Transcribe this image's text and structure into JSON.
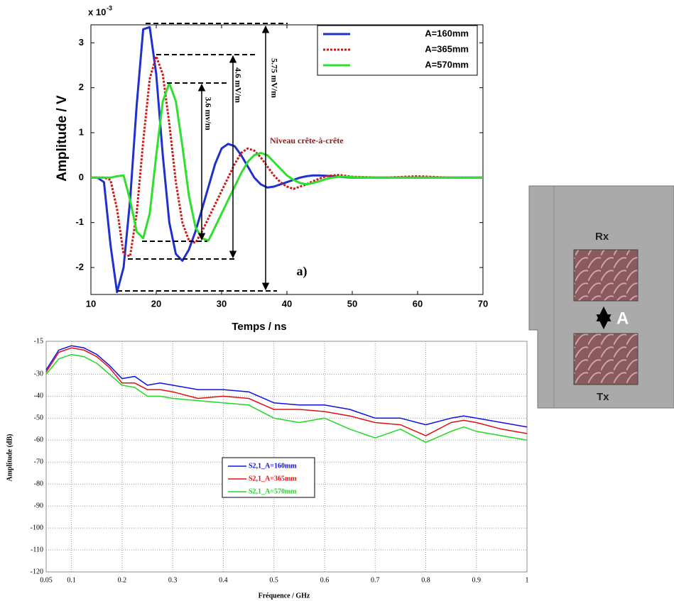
{
  "chart_data": [
    {
      "type": "line",
      "y_label": "Amplitude / V",
      "x_label": "Temps / ns",
      "y_multiplier": {
        "base": "x 10",
        "exponent": "-3"
      },
      "xlim": [
        10,
        70
      ],
      "xticks": [
        10,
        20,
        30,
        40,
        50,
        60,
        70
      ],
      "ylim": [
        -2.6,
        3.4
      ],
      "yticks": [
        -2,
        -1,
        0,
        1,
        2,
        3
      ],
      "grid": false,
      "legend": "upper right",
      "annotations": [
        "5.75 mV/m",
        "4.6 mV/m",
        "3.6 mv/m",
        "Niveau crête-à-crête",
        "a)"
      ],
      "x": [
        10,
        11,
        12,
        13,
        14,
        15,
        16,
        17,
        18,
        19,
        20,
        21,
        22,
        23,
        24,
        25,
        26,
        27,
        28,
        29,
        30,
        31,
        32,
        33,
        34,
        35,
        36,
        37,
        38,
        39,
        40,
        41,
        42,
        43,
        44,
        45,
        46,
        47,
        48,
        49,
        50,
        55,
        60,
        65,
        70
      ],
      "series": [
        {
          "name": "A=160mm",
          "color": "#1f2fd0",
          "dash": "solid",
          "values": [
            0,
            0,
            -0.1,
            -1.5,
            -2.55,
            -2.0,
            -0.5,
            1.6,
            3.3,
            3.35,
            2.3,
            0.5,
            -1.0,
            -1.7,
            -1.85,
            -1.6,
            -1.2,
            -0.7,
            -0.2,
            0.3,
            0.65,
            0.75,
            0.7,
            0.5,
            0.25,
            0.0,
            -0.15,
            -0.22,
            -0.2,
            -0.15,
            -0.1,
            -0.05,
            0,
            0.03,
            0.05,
            0.05,
            0.04,
            0.03,
            0.02,
            0.01,
            0,
            0,
            0,
            0,
            0
          ]
        },
        {
          "name": "A=365mm",
          "color": "#d01818",
          "dash": "dotted",
          "values": [
            0,
            0,
            0,
            -0.05,
            -0.7,
            -1.7,
            -1.75,
            -0.8,
            0.8,
            2.2,
            2.7,
            2.3,
            1.2,
            -0.1,
            -1.0,
            -1.4,
            -1.45,
            -1.2,
            -0.9,
            -0.6,
            -0.3,
            0.0,
            0.3,
            0.55,
            0.65,
            0.6,
            0.45,
            0.25,
            0.05,
            -0.1,
            -0.2,
            -0.25,
            -0.2,
            -0.15,
            -0.08,
            -0.02,
            0.03,
            0.05,
            0.06,
            0.04,
            0.02,
            0,
            0.03,
            0,
            0
          ]
        },
        {
          "name": "A=570mm",
          "color": "#2ee02e",
          "dash": "solid",
          "values": [
            0,
            0,
            0,
            0,
            0.03,
            0.05,
            -0.5,
            -1.2,
            -1.35,
            -0.8,
            0.5,
            1.7,
            2.1,
            1.7,
            0.7,
            -0.4,
            -1.1,
            -1.35,
            -1.4,
            -1.1,
            -0.8,
            -0.5,
            -0.2,
            0.1,
            0.35,
            0.5,
            0.55,
            0.5,
            0.35,
            0.2,
            0.05,
            -0.05,
            -0.12,
            -0.15,
            -0.12,
            -0.08,
            -0.03,
            0,
            0.02,
            0.02,
            0.01,
            0,
            0,
            0,
            0
          ]
        }
      ]
    },
    {
      "type": "line",
      "y_label": "Amplitude (dB)",
      "x_label": "Fréquence / GHz",
      "xlim": [
        0.05,
        1
      ],
      "xticks": [
        0.05,
        0.1,
        0.2,
        0.3,
        0.4,
        0.5,
        0.6,
        0.7,
        0.8,
        0.9,
        1
      ],
      "ylim": [
        -120,
        -15
      ],
      "yticks": [
        -15,
        -30,
        -40,
        -50,
        -60,
        -70,
        -80,
        -90,
        -100,
        -110,
        -120
      ],
      "grid": true,
      "legend": "center left",
      "x": [
        0.05,
        0.075,
        0.1,
        0.125,
        0.15,
        0.175,
        0.2,
        0.225,
        0.25,
        0.275,
        0.3,
        0.35,
        0.4,
        0.45,
        0.5,
        0.55,
        0.6,
        0.65,
        0.7,
        0.75,
        0.8,
        0.85,
        0.875,
        0.9,
        0.95,
        1
      ],
      "series": [
        {
          "name": "S2,1_A=160mm",
          "color": "#1010e0",
          "dash": "solid",
          "values": [
            -28,
            -19,
            -17,
            -18,
            -21,
            -26,
            -32,
            -31,
            -35,
            -34,
            -35,
            -37,
            -37,
            -38,
            -43,
            -44,
            -44,
            -46,
            -50,
            -50,
            -53,
            -50,
            -49,
            -50,
            -52,
            -54
          ]
        },
        {
          "name": "S2,1_A=365mm",
          "color": "#e01010",
          "dash": "solid",
          "values": [
            -29,
            -20,
            -18,
            -19,
            -22,
            -27,
            -34,
            -34,
            -37,
            -37,
            -38,
            -41,
            -40,
            -41,
            -46,
            -46,
            -47,
            -49,
            -52,
            -53,
            -58,
            -52,
            -51,
            -52,
            -55,
            -57
          ]
        },
        {
          "name": "S2,1_A=570mm",
          "color": "#22d822",
          "dash": "solid",
          "values": [
            -30,
            -23,
            -21,
            -22,
            -25,
            -30,
            -35,
            -36,
            -40,
            -40,
            -41,
            -42,
            -43,
            -44,
            -50,
            -52,
            -50,
            -55,
            -59,
            -55,
            -61,
            -56,
            -54,
            -56,
            -58,
            -60
          ]
        }
      ]
    }
  ],
  "illustration": {
    "rx_label": "Rx",
    "gap_label": "A",
    "tx_label": "Tx"
  }
}
